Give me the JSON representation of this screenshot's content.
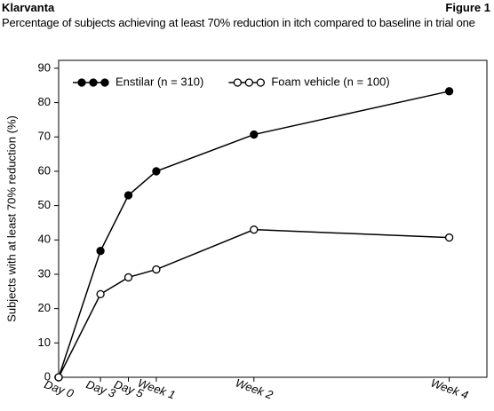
{
  "chart_data": {
    "type": "line",
    "brand": "Klarvanta",
    "figure": "Figure 1",
    "title": "Percentage of subjects achieving at least 70% reduction in itch compared to baseline in trial one",
    "y_label": "Subjects with at least 70% reduction (%)",
    "x": [
      0,
      3,
      5,
      7,
      14,
      28
    ],
    "series": [
      {
        "name": "Enstilar (n = 310)",
        "color": "#000000",
        "marker": "filled",
        "values": [
          0,
          36.8,
          53,
          60,
          70.7,
          83.3
        ]
      },
      {
        "name": "Foam vehicle (n = 100)",
        "color": "#000000",
        "marker": "open",
        "values": [
          0,
          24.2,
          29.1,
          31.4,
          43,
          40.7
        ]
      }
    ],
    "xlim": [
      0,
      30.7
    ],
    "ylim": [
      0,
      92.3
    ],
    "xticks": [
      {
        "value": 0,
        "label": "Day 0"
      },
      {
        "value": 3,
        "label": "Day 3"
      },
      {
        "value": 5,
        "label": "Day 5"
      },
      {
        "value": 7,
        "label": "Week 1"
      },
      {
        "value": 14,
        "label": "Week 2"
      },
      {
        "value": 28,
        "label": "Week 4"
      }
    ],
    "yticks": [
      0,
      10,
      20,
      30,
      40,
      50,
      60,
      70,
      80,
      90
    ],
    "legend": "top-left"
  }
}
